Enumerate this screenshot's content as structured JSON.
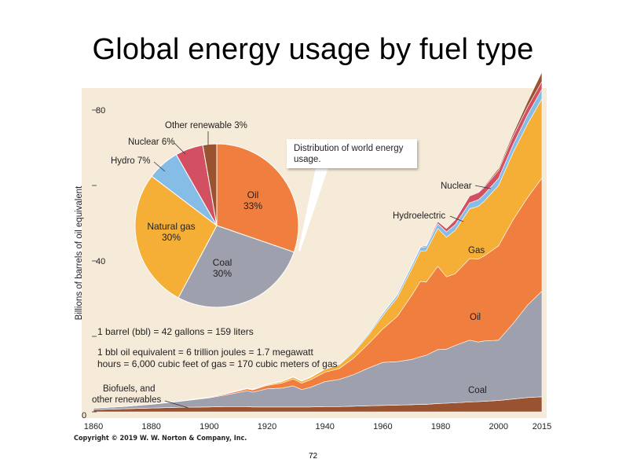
{
  "slide": {
    "title": "Global energy usage by fuel type",
    "copyright": "Copyright © 2019 W. W. Norton & Company, Inc.",
    "page_number": "72"
  },
  "colors": {
    "background": "#f6ead9",
    "biofuels": "#9a5330",
    "coal": "#9fa0ad",
    "oil": "#f07e3e",
    "gas": "#f5ae36",
    "hydro": "#86bde6",
    "nuclear": "#d35062",
    "other_renewable": "#9a5330"
  },
  "chart_data": [
    {
      "type": "area",
      "stacked": true,
      "x": [
        1860,
        1870,
        1880,
        1890,
        1900,
        1905,
        1910,
        1913,
        1915,
        1920,
        1925,
        1929,
        1932,
        1935,
        1940,
        1945,
        1950,
        1955,
        1960,
        1965,
        1970,
        1973,
        1975,
        1979,
        1982,
        1985,
        1990,
        1993,
        1995,
        2000,
        2005,
        2010,
        2015
      ],
      "xticks": [
        1860,
        1880,
        1900,
        1920,
        1940,
        1960,
        1980,
        2000,
        2015
      ],
      "ylabel": "Billions of barrels of oil equivalent",
      "ylim": [
        0,
        85
      ],
      "yticks": [
        0,
        20,
        40,
        60,
        80
      ],
      "ytick_labels": [
        "0",
        "",
        "40",
        "",
        "80"
      ],
      "series": [
        {
          "key": "biofuels",
          "values": [
            0.6,
            0.8,
            1.0,
            1.2,
            1.3,
            1.4,
            1.4,
            1.4,
            1.3,
            1.3,
            1.3,
            1.3,
            1.3,
            1.3,
            1.4,
            1.4,
            1.5,
            1.6,
            1.7,
            1.8,
            1.9,
            2.0,
            2.0,
            2.2,
            2.3,
            2.4,
            2.6,
            2.7,
            2.8,
            3.0,
            3.4,
            3.8,
            4.0
          ]
        },
        {
          "key": "coal",
          "values": [
            0.4,
            0.6,
            1.0,
            1.6,
            2.4,
            3.0,
            3.7,
            4.2,
            3.9,
            4.8,
            5.0,
            5.6,
            4.6,
            5.2,
            6.6,
            7.2,
            8.4,
            10.0,
            11.4,
            11.5,
            12.0,
            12.6,
            13.0,
            14.3,
            14.3,
            15.2,
            16.4,
            15.8,
            16.0,
            16.0,
            20.0,
            24.5,
            28.0
          ]
        },
        {
          "key": "oil",
          "values": [
            0,
            0,
            0.02,
            0.05,
            0.15,
            0.25,
            0.4,
            0.5,
            0.6,
            0.9,
            1.3,
            1.8,
            1.7,
            2.0,
            2.5,
            2.9,
            4.4,
            6.4,
            8.9,
            12.0,
            17.0,
            20.0,
            19.4,
            22.1,
            19.2,
            19.0,
            21.6,
            22.0,
            22.5,
            25.0,
            27.5,
            28.5,
            30.0
          ]
        },
        {
          "key": "gas",
          "values": [
            0,
            0,
            0,
            0,
            0,
            0.05,
            0.08,
            0.1,
            0.12,
            0.2,
            0.4,
            0.5,
            0.5,
            0.6,
            0.8,
            1.0,
            1.5,
            2.3,
            3.5,
            5.0,
            7.0,
            8.0,
            8.3,
            10.0,
            10.5,
            11.5,
            13.2,
            14.0,
            14.5,
            16.0,
            17.8,
            19.5,
            21.0
          ]
        },
        {
          "key": "hydro",
          "values": [
            0,
            0,
            0,
            0,
            0,
            0,
            0.02,
            0.03,
            0.05,
            0.07,
            0.1,
            0.12,
            0.13,
            0.15,
            0.2,
            0.25,
            0.3,
            0.4,
            0.6,
            0.7,
            0.9,
            1.0,
            1.1,
            1.3,
            1.4,
            1.5,
            1.6,
            1.7,
            1.8,
            1.9,
            2.1,
            2.4,
            2.6
          ]
        },
        {
          "key": "nuclear",
          "values": [
            0,
            0,
            0,
            0,
            0,
            0,
            0,
            0,
            0,
            0,
            0,
            0,
            0,
            0,
            0,
            0,
            0,
            0,
            0,
            0.02,
            0.1,
            0.2,
            0.3,
            0.6,
            0.9,
            1.3,
            1.8,
            1.9,
            1.9,
            2.1,
            2.2,
            2.1,
            2.0
          ]
        },
        {
          "key": "other_renewable",
          "values": [
            0,
            0,
            0,
            0,
            0,
            0,
            0,
            0,
            0,
            0,
            0,
            0,
            0,
            0,
            0,
            0,
            0,
            0,
            0,
            0,
            0,
            0,
            0,
            0.02,
            0.05,
            0.1,
            0.15,
            0.2,
            0.3,
            0.5,
            0.8,
            1.4,
            2.5
          ]
        }
      ],
      "series_labels": {
        "nuclear": "Nuclear",
        "hydro": "Hydroelectric",
        "gas": "Gas",
        "oil": "Oil",
        "coal": "Coal",
        "biofuels": "Biofuels, and\nother renewables"
      },
      "annotations": [
        "1 barrel (bbl) = 42 gallons = 159 liters",
        "1 bbl oil equivalent = 6 trillion joules = 1.7 megawatt\nhours = 6,000 cubic feet of gas = 170 cubic meters of gas"
      ]
    },
    {
      "type": "pie",
      "callout": "Distribution of world energy\nusage.",
      "slices": [
        {
          "key": "oil",
          "label": "Oil",
          "value": 33,
          "display": "33%"
        },
        {
          "key": "coal",
          "label": "Coal",
          "value": 30,
          "display": "30%"
        },
        {
          "key": "gas",
          "label": "Natural gas",
          "value": 30,
          "display": "30%"
        },
        {
          "key": "hydro",
          "label": "Hydro",
          "value": 7,
          "display": "7%"
        },
        {
          "key": "nuclear",
          "label": "Nuclear",
          "value": 6,
          "display": "6%"
        },
        {
          "key": "other_renewable",
          "label": "Other renewable",
          "value": 3,
          "display": "3%"
        }
      ]
    }
  ]
}
